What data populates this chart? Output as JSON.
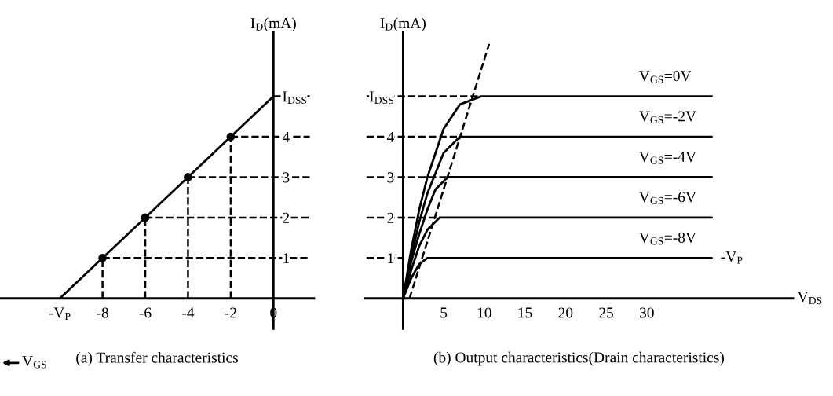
{
  "chart_data": [
    {
      "type": "line",
      "title": "(a) Transfer characteristics",
      "xlabel": "V$_{GS}$",
      "ylabel": "I$_{D}$(mA)",
      "xlim": [
        -12.8,
        1.9
      ],
      "ylim": [
        -0.75,
        6.6
      ],
      "xticks": [
        {
          "value": -10,
          "label": "-V$_{P}$"
        },
        -8,
        -6,
        -4,
        -2,
        0
      ],
      "yticks": [
        1,
        2,
        3,
        4,
        {
          "value": 5,
          "label": "I$_{DSS}$"
        }
      ],
      "grid": false,
      "legend": false,
      "series": [
        {
          "type": "line",
          "color": "#000000",
          "x": [
            -10,
            -8,
            -6,
            -4,
            -2,
            0
          ],
          "values": [
            0,
            1,
            2,
            3,
            4,
            5
          ]
        },
        {
          "type": "scatter",
          "marker": "circle",
          "color": "#000000",
          "x": [
            -8,
            -6,
            -4,
            -2
          ],
          "values": [
            1,
            2,
            3,
            4
          ]
        },
        {
          "type": "line",
          "line_style": "dashed",
          "color": "#000000",
          "x": [
            -8,
            -8
          ],
          "values": [
            0,
            1
          ]
        },
        {
          "type": "line",
          "line_style": "dashed",
          "color": "#000000",
          "x": [
            -6,
            -6
          ],
          "values": [
            0,
            2
          ]
        },
        {
          "type": "line",
          "line_style": "dashed",
          "color": "#000000",
          "x": [
            -4,
            -4
          ],
          "values": [
            0,
            3
          ]
        },
        {
          "type": "line",
          "line_style": "dashed",
          "color": "#000000",
          "x": [
            -2,
            -2
          ],
          "values": [
            0,
            4
          ]
        },
        {
          "type": "line",
          "line_style": "dashed",
          "color": "#000000",
          "x": [
            -8,
            1.7
          ],
          "values": [
            1,
            1
          ]
        },
        {
          "type": "line",
          "line_style": "dashed",
          "color": "#000000",
          "x": [
            -6,
            1.7
          ],
          "values": [
            2,
            2
          ]
        },
        {
          "type": "line",
          "line_style": "dashed",
          "color": "#000000",
          "x": [
            -4,
            1.7
          ],
          "values": [
            3,
            3
          ]
        },
        {
          "type": "line",
          "line_style": "dashed",
          "color": "#000000",
          "x": [
            -2,
            1.7
          ],
          "values": [
            4,
            4
          ]
        },
        {
          "type": "line",
          "line_style": "dashed",
          "color": "#000000",
          "x": [
            0,
            1.7
          ],
          "values": [
            5,
            5
          ]
        }
      ]
    },
    {
      "type": "line",
      "title": "(b) Output characteristics(Drain characteristics)",
      "xlabel": "V$_{DS}$",
      "ylabel": "I$_{D}$(mA)",
      "xlim": [
        -4.7,
        48
      ],
      "ylim": [
        -0.75,
        6.6
      ],
      "xticks": [
        5,
        10,
        15,
        20,
        25,
        30
      ],
      "yticks": [
        1,
        2,
        3,
        4,
        {
          "value": 5,
          "label": "I$_{DSS}$"
        }
      ],
      "grid": false,
      "legend": false,
      "annotations": [
        {
          "text": "-V$_{P}$",
          "x": 38,
          "y": 1
        }
      ],
      "series": [
        {
          "type": "line",
          "name": "V$_{GS}$=0V",
          "color": "#000000",
          "x": [
            0,
            1,
            2,
            3,
            5,
            7,
            9.6,
            38
          ],
          "values": [
            0,
            1.2,
            2.2,
            3.0,
            4.2,
            4.8,
            5,
            5
          ]
        },
        {
          "type": "line",
          "name": "V$_{GS}$=-2V",
          "color": "#000000",
          "x": [
            0,
            1,
            2,
            3,
            5,
            7,
            38
          ],
          "values": [
            0,
            1.0,
            1.9,
            2.6,
            3.6,
            4,
            4
          ]
        },
        {
          "type": "line",
          "name": "V$_{GS}$=-4V",
          "color": "#000000",
          "x": [
            0,
            1,
            2,
            3,
            4,
            5.5,
            38
          ],
          "values": [
            0,
            0.9,
            1.6,
            2.2,
            2.7,
            3,
            3
          ]
        },
        {
          "type": "line",
          "name": "V$_{GS}$=-6V",
          "color": "#000000",
          "x": [
            0,
            1,
            2,
            3,
            4.5,
            38
          ],
          "values": [
            0,
            0.7,
            1.3,
            1.7,
            2,
            2
          ]
        },
        {
          "type": "line",
          "name": "V$_{GS}$=-8V",
          "color": "#000000",
          "x": [
            0,
            1,
            2,
            3,
            38
          ],
          "values": [
            0,
            0.5,
            0.85,
            1,
            1
          ]
        },
        {
          "type": "line",
          "line_style": "dashed",
          "color": "#000000",
          "x": [
            0.8,
            10.6
          ],
          "values": [
            0,
            6.3
          ]
        },
        {
          "type": "line",
          "line_style": "dashed",
          "color": "#000000",
          "x": [
            -4.5,
            9.6
          ],
          "values": [
            5,
            5
          ]
        },
        {
          "type": "line",
          "line_style": "dashed",
          "color": "#000000",
          "x": [
            -4.5,
            7
          ],
          "values": [
            4,
            4
          ]
        },
        {
          "type": "line",
          "line_style": "dashed",
          "color": "#000000",
          "x": [
            -4.5,
            5.5
          ],
          "values": [
            3,
            3
          ]
        },
        {
          "type": "line",
          "line_style": "dashed",
          "color": "#000000",
          "x": [
            -4.5,
            4.5
          ],
          "values": [
            2,
            2
          ]
        },
        {
          "type": "line",
          "line_style": "dashed",
          "color": "#000000",
          "x": [
            -4.5,
            0
          ],
          "values": [
            1,
            1
          ]
        }
      ]
    }
  ]
}
